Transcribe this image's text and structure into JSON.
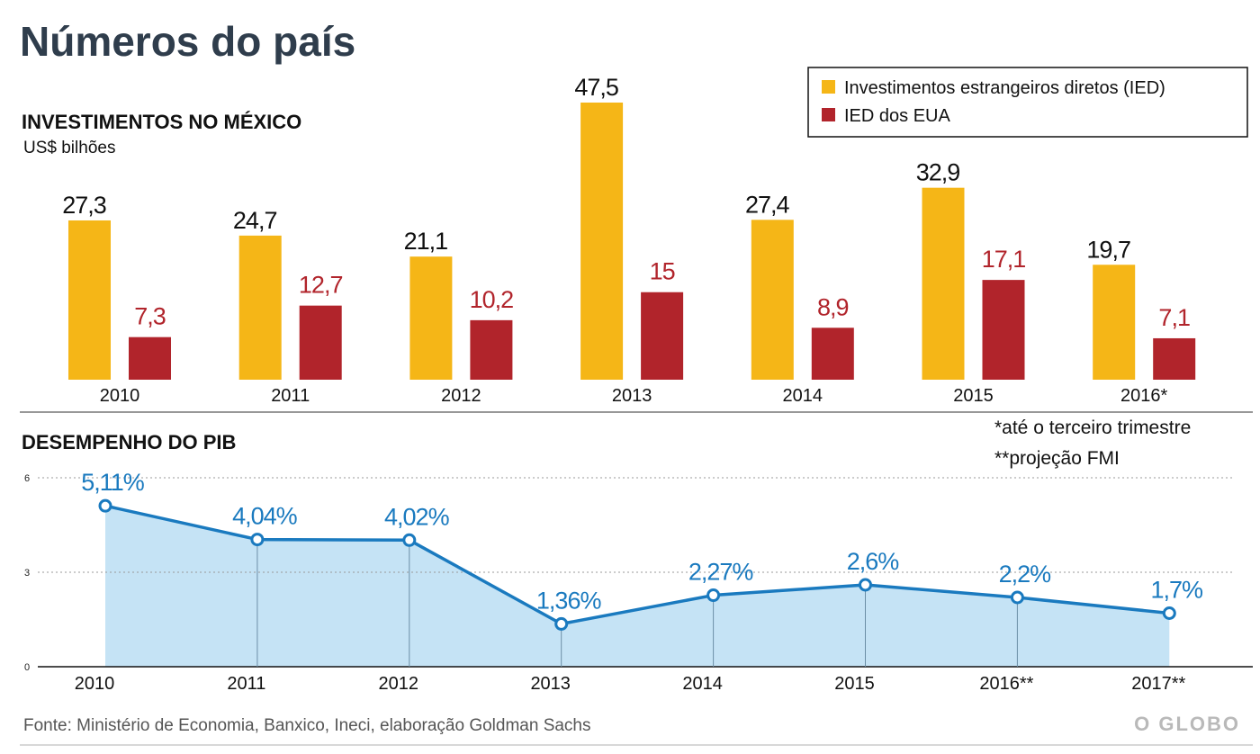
{
  "title": "Números do país",
  "brand": "O GLOBO",
  "source": "Fonte: Ministério de Economia, Banxico, Ineci, elaboração Goldman Sachs",
  "notes": [
    "*até o terceiro trimestre",
    "**projeção FMI"
  ],
  "colors": {
    "ied": "#f5b617",
    "eua": "#b1242b",
    "gdp_line": "#1a7abf",
    "gdp_fill": "#c5e3f5",
    "title": "#2f3d4c"
  },
  "chart_data": [
    {
      "type": "bar",
      "title": "INVESTIMENTOS NO MÉXICO",
      "ylabel": "US$ bilhões",
      "categories": [
        "2010",
        "2011",
        "2012",
        "2013",
        "2014",
        "2015",
        "2016*"
      ],
      "series": [
        {
          "name": "Investimentos estrangeiros diretos (IED)",
          "values": [
            27.3,
            24.7,
            21.1,
            47.5,
            27.4,
            32.9,
            19.7
          ],
          "labels": [
            "27,3",
            "24,7",
            "21,1",
            "47,5",
            "27,4",
            "32,9",
            "19,7"
          ]
        },
        {
          "name": "IED dos EUA",
          "values": [
            7.3,
            12.7,
            10.2,
            15,
            8.9,
            17.1,
            7.1
          ],
          "labels": [
            "7,3",
            "12,7",
            "10,2",
            "15",
            "8,9",
            "17,1",
            "7,1"
          ]
        }
      ],
      "ylim": [
        0,
        47.5
      ],
      "legend": "top-right"
    },
    {
      "type": "area",
      "title": "DESEMPENHO DO PIB",
      "x": [
        "2010",
        "2011",
        "2012",
        "2013",
        "2014",
        "2015",
        "2016**",
        "2017**"
      ],
      "values": [
        5.11,
        4.04,
        4.02,
        1.36,
        2.27,
        2.6,
        2.2,
        1.7
      ],
      "labels": [
        "5,11%",
        "4,04%",
        "4,02%",
        "1,36%",
        "2,27%",
        "2,6%",
        "2,2%",
        "1,7%"
      ],
      "yticks": [
        "0",
        "3",
        "6"
      ],
      "ylim": [
        0,
        6
      ],
      "grid": true
    }
  ]
}
